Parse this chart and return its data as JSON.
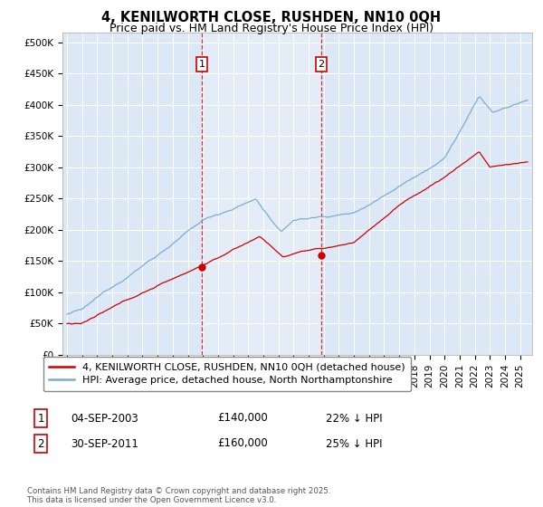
{
  "title": "4, KENILWORTH CLOSE, RUSHDEN, NN10 0QH",
  "subtitle": "Price paid vs. HM Land Registry's House Price Index (HPI)",
  "ylabel_ticks": [
    "£0",
    "£50K",
    "£100K",
    "£150K",
    "£200K",
    "£250K",
    "£300K",
    "£350K",
    "£400K",
    "£450K",
    "£500K"
  ],
  "ytick_values": [
    0,
    50000,
    100000,
    150000,
    200000,
    250000,
    300000,
    350000,
    400000,
    450000,
    500000
  ],
  "ylim": [
    0,
    515000
  ],
  "xlim_start": 1994.7,
  "xlim_end": 2025.8,
  "hpi_color": "#7aadd4",
  "price_color": "#cc0000",
  "marker1_x": 2003.92,
  "marker2_x": 2011.83,
  "marker1_price": 140000,
  "marker2_price": 160000,
  "marker1_date": "04-SEP-2003",
  "marker2_date": "30-SEP-2011",
  "marker1_hpi_pct": "22%",
  "marker2_hpi_pct": "25%",
  "legend_label_price": "4, KENILWORTH CLOSE, RUSHDEN, NN10 0QH (detached house)",
  "legend_label_hpi": "HPI: Average price, detached house, North Northamptonshire",
  "footer": "Contains HM Land Registry data © Crown copyright and database right 2025.\nThis data is licensed under the Open Government Licence v3.0.",
  "background_color": "#ffffff",
  "plot_bg_color": "#dce8f5",
  "grid_color": "#ffffff",
  "title_fontsize": 10.5,
  "subtitle_fontsize": 9,
  "tick_fontsize": 7.5,
  "legend_fontsize": 8
}
